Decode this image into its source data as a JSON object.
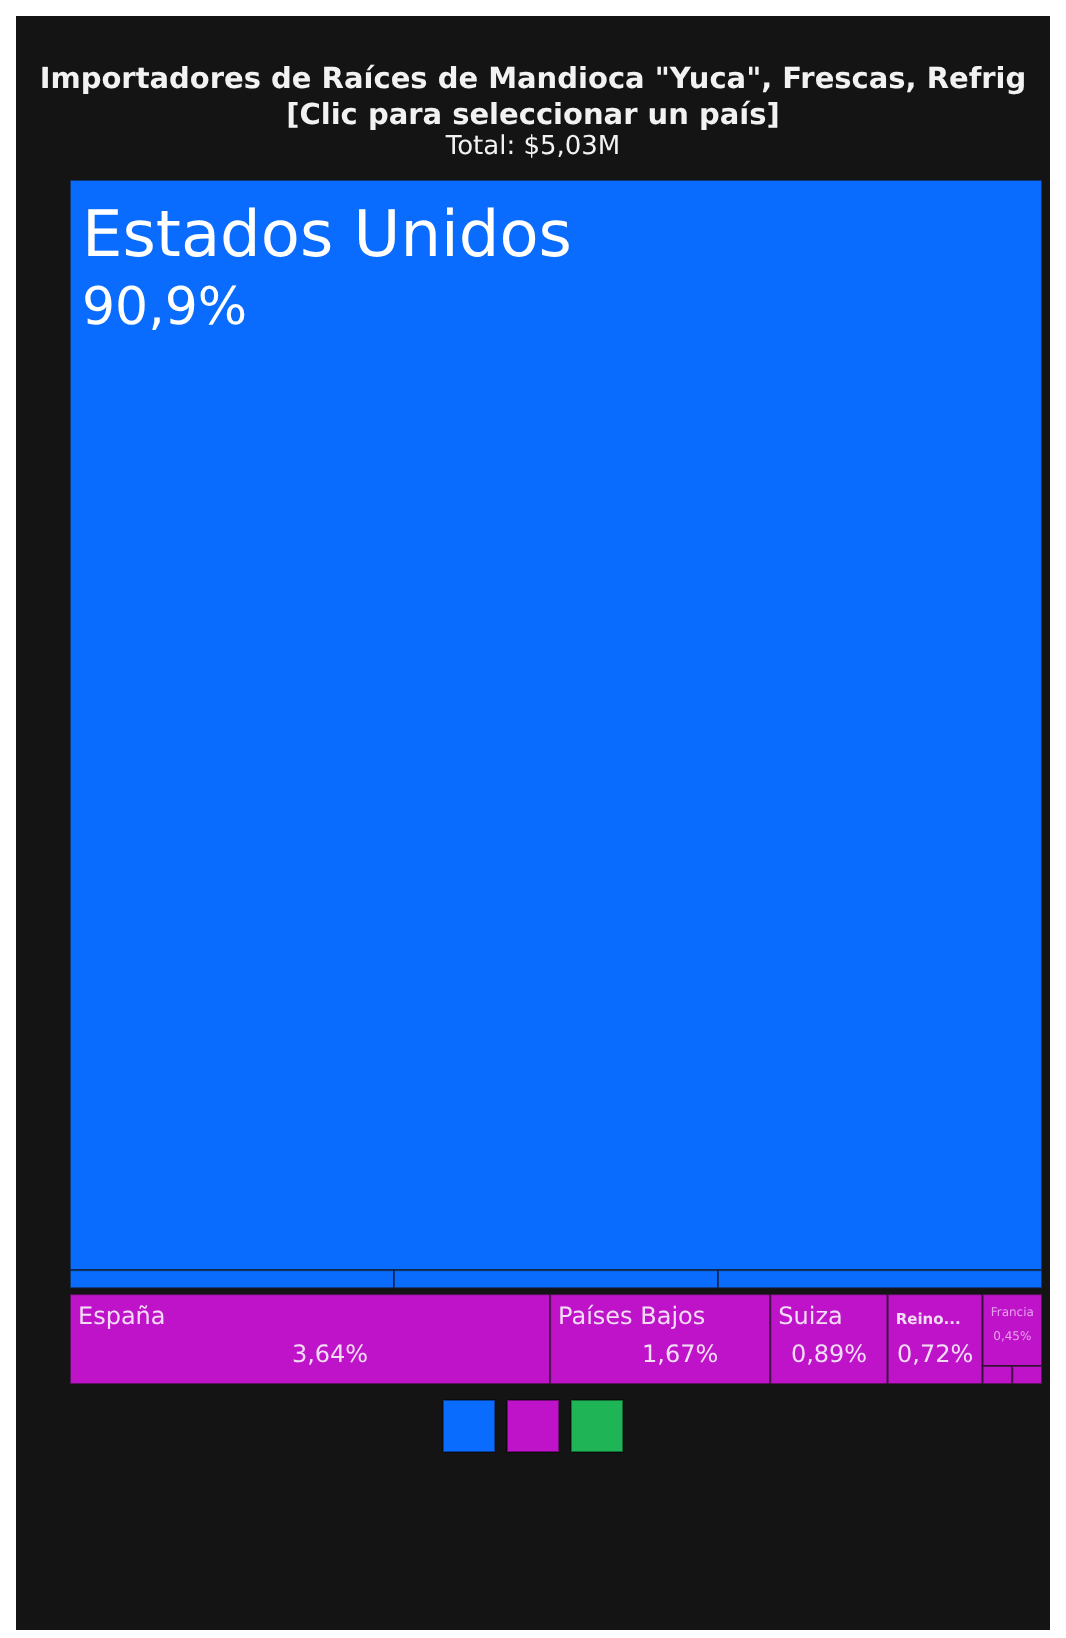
{
  "chart_data": {
    "type": "other",
    "title": "Importadores de Raíces de Mandioca \"Yuca\", Frescas, Refrig",
    "subtitle": "[Clic para seleccionar un país]",
    "annotations": [
      "Total: $5,03M"
    ],
    "categories": [
      "Estados Unidos",
      null,
      null,
      null,
      "España",
      "Países Bajos",
      "Suiza",
      "Reino...",
      "Francia",
      null,
      null
    ],
    "values": [
      90.9,
      null,
      null,
      null,
      3.64,
      1.67,
      0.89,
      0.72,
      0.45,
      null,
      null
    ],
    "colors": [
      "#0a6cff",
      "#0a6cff",
      "#0a6cff",
      "#0a6cff",
      "#bf13c9",
      "#bf13c9",
      "#bf13c9",
      "#bf13c9",
      "#bf13c9",
      "#bf13c9",
      "#bf13c9"
    ],
    "value_labels": [
      "90,9%",
      null,
      null,
      null,
      "3,64%",
      "1,67%",
      "0,89%",
      "0,72%",
      "0,45%",
      null,
      null
    ]
  }
}
